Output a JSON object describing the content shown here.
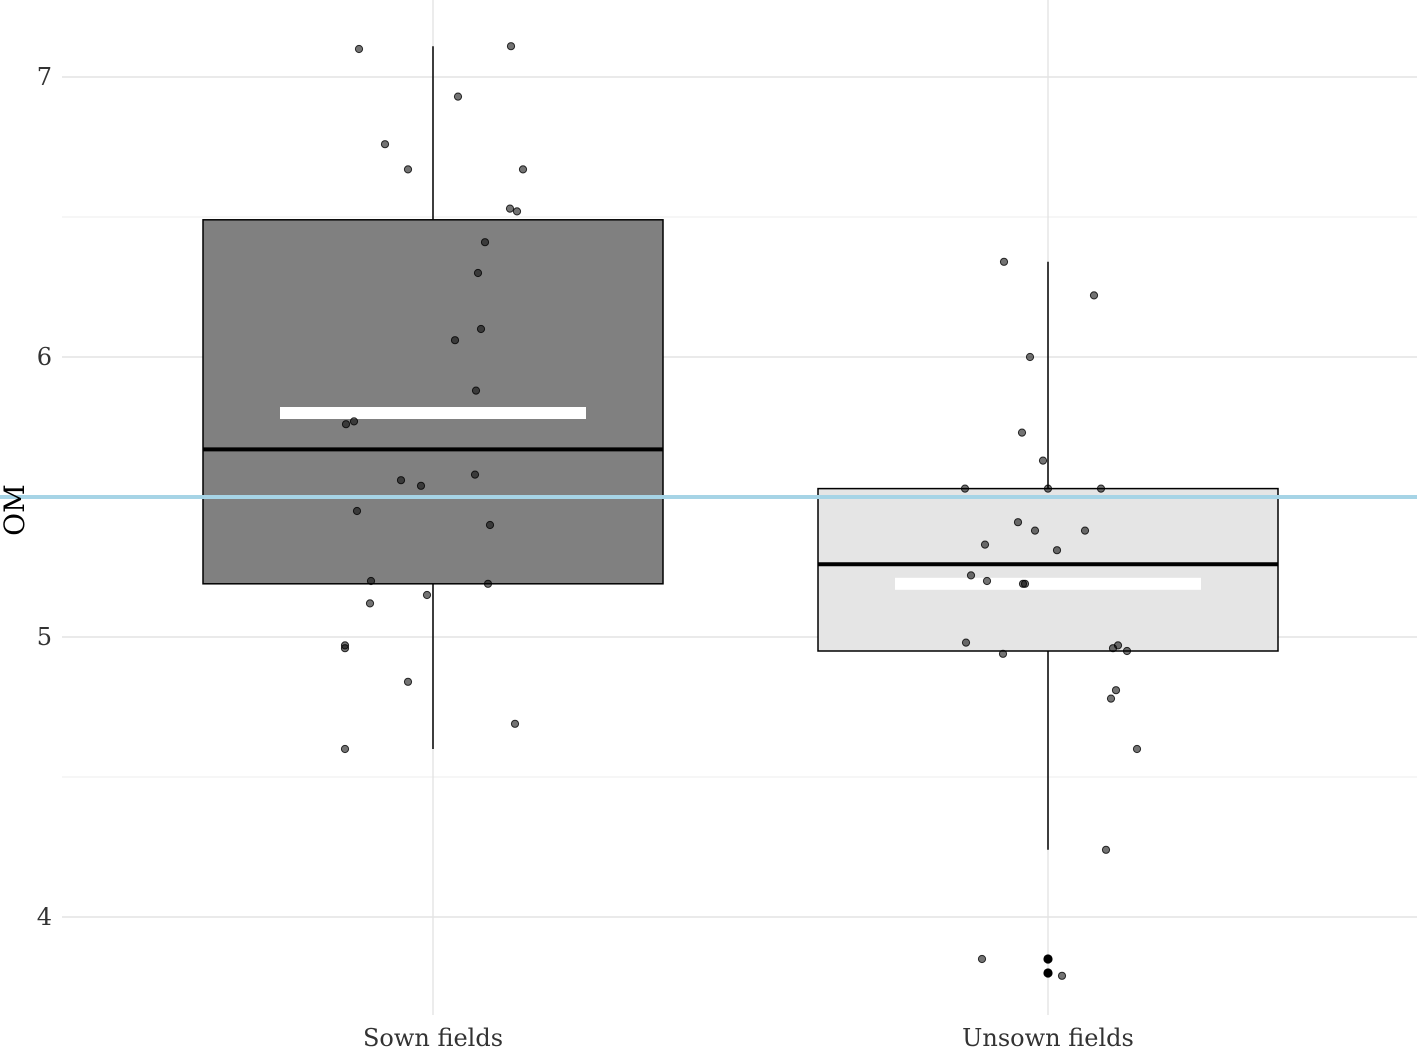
{
  "chart_data": {
    "type": "boxplot",
    "ylabel": "OM",
    "xlabel": "",
    "ylim": [
      3.75,
      7.2
    ],
    "y_ticks": [
      "4",
      "5",
      "6",
      "7"
    ],
    "y_minor_ticks": [
      4.5,
      5.5,
      6.5
    ],
    "grid": true,
    "reference_line": {
      "value": 5.5,
      "color": "#a6d4e6"
    },
    "categories": [
      "Sown fields",
      "Unsown fields"
    ],
    "boxes": [
      {
        "category": "Sown fields",
        "fill": "#808080",
        "q1": 5.19,
        "median": 5.67,
        "q3": 6.49,
        "whisker_low": 4.6,
        "whisker_high": 7.11,
        "mean": 5.8,
        "points": [
          7.11,
          7.1,
          6.93,
          6.76,
          6.67,
          6.67,
          6.53,
          6.52,
          6.41,
          6.3,
          6.1,
          6.06,
          5.88,
          5.76,
          5.77,
          5.56,
          5.58,
          5.54,
          5.45,
          5.4,
          5.19,
          5.2,
          5.15,
          5.12,
          4.97,
          4.96,
          4.84,
          4.69,
          4.6
        ],
        "outliers": []
      },
      {
        "category": "Unsown fields",
        "fill": "#e5e5e5",
        "q1": 4.95,
        "median": 5.26,
        "q3": 5.53,
        "whisker_low": 4.24,
        "whisker_high": 6.34,
        "mean": 5.19,
        "points": [
          6.34,
          6.22,
          6.0,
          5.73,
          5.63,
          5.53,
          5.53,
          5.53,
          5.41,
          5.38,
          5.38,
          5.33,
          5.31,
          5.22,
          5.2,
          5.19,
          5.19,
          4.98,
          4.97,
          4.96,
          4.95,
          4.94,
          4.81,
          4.78,
          4.6,
          4.24,
          3.85,
          3.79
        ],
        "outliers": [
          3.85,
          3.8
        ]
      }
    ]
  }
}
